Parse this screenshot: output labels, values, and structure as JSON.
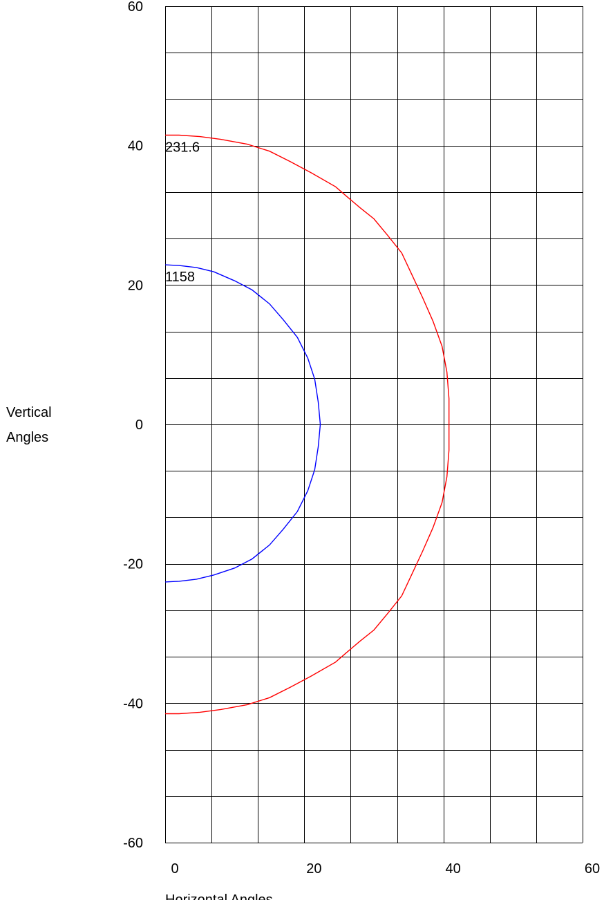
{
  "chart_data": {
    "type": "line",
    "xlabel": "Horizontal Angles",
    "ylabel_lines": [
      "Vertical",
      "Angles"
    ],
    "xlim": [
      0,
      60
    ],
    "ylim": [
      -60,
      60
    ],
    "grid": true,
    "x_ticks": [
      0,
      20,
      40,
      60
    ],
    "y_ticks": [
      60,
      40,
      20,
      0,
      -20,
      -40,
      -60
    ],
    "x_tick_labels": [
      "0",
      "20",
      "40",
      "60"
    ],
    "y_tick_labels": [
      "60",
      "40",
      "20",
      "0",
      "-20",
      "-40",
      "-60"
    ],
    "x_grid_step": 6.67,
    "y_grid_step": 6.67,
    "series": [
      {
        "label": "231.6",
        "color": "#ff0000",
        "points": [
          [
            0,
            41.5
          ],
          [
            2,
            41.5
          ],
          [
            5,
            41.3
          ],
          [
            8,
            40.9
          ],
          [
            11.8,
            40.2
          ],
          [
            15,
            39.2
          ],
          [
            18,
            37.7
          ],
          [
            21,
            36.1
          ],
          [
            24.5,
            34.1
          ],
          [
            26,
            32.8
          ],
          [
            28,
            31.1
          ],
          [
            30,
            29.5
          ],
          [
            32,
            27.1
          ],
          [
            34,
            24.6
          ],
          [
            35.5,
            21.4
          ],
          [
            37,
            18.2
          ],
          [
            38.5,
            14.8
          ],
          [
            39.8,
            11.2
          ],
          [
            40.5,
            7.5
          ],
          [
            40.8,
            3.7
          ],
          [
            40.8,
            0
          ],
          [
            40.8,
            -3.7
          ],
          [
            40.5,
            -7.5
          ],
          [
            39.8,
            -11.2
          ],
          [
            38.5,
            -14.8
          ],
          [
            37,
            -18.2
          ],
          [
            35.5,
            -21.4
          ],
          [
            34,
            -24.6
          ],
          [
            32,
            -27.1
          ],
          [
            30,
            -29.5
          ],
          [
            28,
            -31.1
          ],
          [
            26,
            -32.8
          ],
          [
            24.5,
            -34.1
          ],
          [
            21,
            -36.1
          ],
          [
            18,
            -37.7
          ],
          [
            15,
            -39.2
          ],
          [
            11.8,
            -40.2
          ],
          [
            8,
            -40.9
          ],
          [
            5,
            -41.3
          ],
          [
            2,
            -41.5
          ],
          [
            0,
            -41.5
          ]
        ]
      },
      {
        "label": "1158",
        "color": "#0000ff",
        "points": [
          [
            0,
            22.9
          ],
          [
            2,
            22.8
          ],
          [
            4.5,
            22.5
          ],
          [
            7,
            21.9
          ],
          [
            10,
            20.6
          ],
          [
            12.5,
            19.3
          ],
          [
            15,
            17.3
          ],
          [
            17,
            15
          ],
          [
            19,
            12.5
          ],
          [
            20.5,
            9.5
          ],
          [
            21.5,
            6.5
          ],
          [
            22,
            3.2
          ],
          [
            22.3,
            0
          ],
          [
            22,
            -3.2
          ],
          [
            21.5,
            -6.5
          ],
          [
            20.5,
            -9.5
          ],
          [
            19,
            -12.5
          ],
          [
            17,
            -15
          ],
          [
            15,
            -17.3
          ],
          [
            12.5,
            -19.3
          ],
          [
            10,
            -20.6
          ],
          [
            7,
            -21.6
          ],
          [
            4.5,
            -22.2
          ],
          [
            2,
            -22.5
          ],
          [
            0,
            -22.6
          ]
        ]
      }
    ]
  }
}
